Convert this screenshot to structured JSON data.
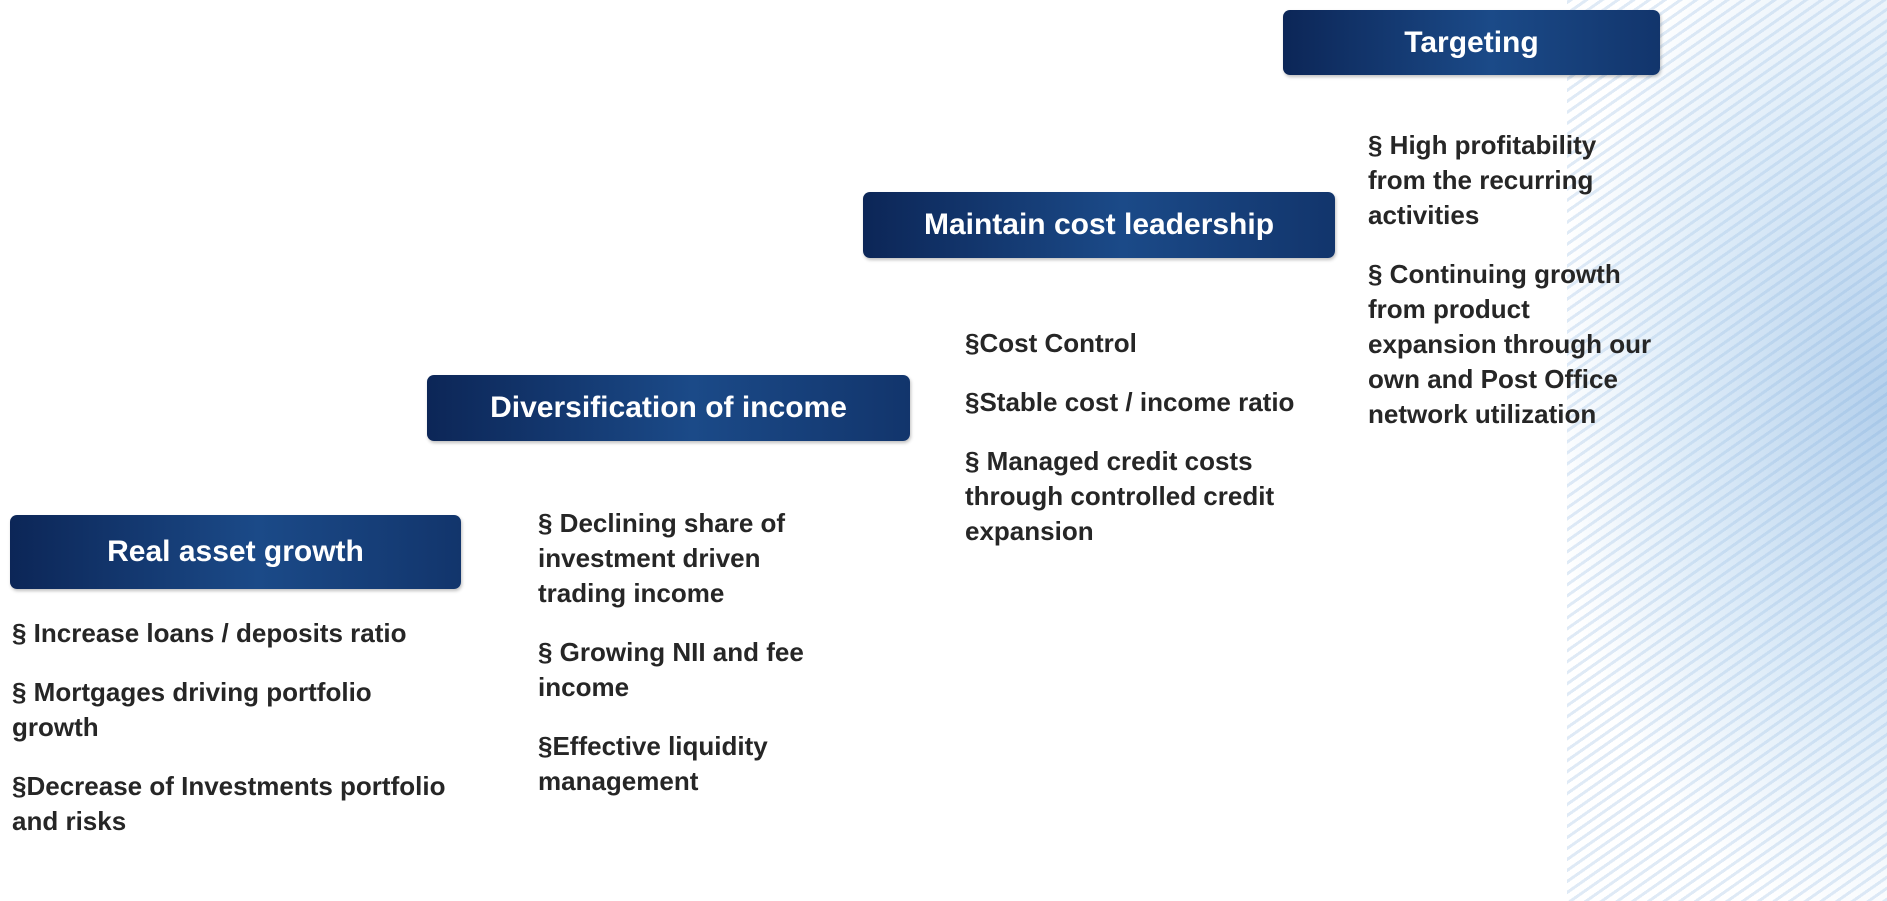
{
  "stages": [
    {
      "title": "Real asset growth",
      "points": [
        "§ Increase loans /  deposits ratio",
        "§ Mortgages driving portfolio growth",
        "§Decrease of Investments portfolio and risks"
      ]
    },
    {
      "title": "Diversification of income",
      "points": [
        "§ Declining share of investment driven trading income",
        "§ Growing NII and fee income",
        "§Effective liquidity management"
      ]
    },
    {
      "title": "Maintain cost leadership",
      "points": [
        "§Cost Control",
        "§Stable cost / income ratio",
        "§ Managed credit costs through controlled credit expansion"
      ]
    },
    {
      "title": "Targeting",
      "points": [
        "§ High profitability from the recurring activities",
        "§ Continuing growth from product expansion through our own and Post Office network utilization"
      ]
    }
  ]
}
